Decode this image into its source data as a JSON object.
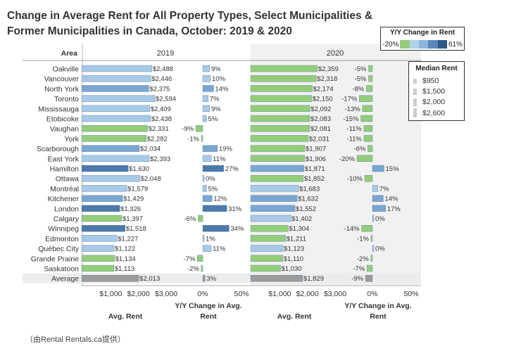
{
  "title_line1": "Change in Average Rent for All Property Types, Select Municipalities &",
  "title_line2": "Former Municipalities in Canada, October: 2019 & 2020",
  "caption": "（由Rental Rentals.ca提供）",
  "legend_color": {
    "title": "Y/Y Change in Rent",
    "min_label": "-20%",
    "max_label": "61%",
    "ramp": [
      "#93cd7a",
      "#b0d1ea",
      "#8fb6da",
      "#5a87b8",
      "#2f5888"
    ]
  },
  "legend_size": {
    "title": "Median Rent",
    "items": [
      "$950",
      "$1,500",
      "$2,000",
      "$2,600"
    ]
  },
  "colors": {
    "green": "#93cd7a",
    "light_blue": "#a8c9e8",
    "mid_blue": "#7aa6d2",
    "dark_blue": "#4d79aa",
    "gray": "#9b9b9b",
    "band": "#f1f1f1"
  },
  "chart_data": {
    "type": "bar",
    "header_area": "Area",
    "year_2019": "2019",
    "year_2020": "2020",
    "areas": [
      "Oakville",
      "Vancouver",
      "North York",
      "Toronto",
      "Mississauga",
      "Etobicoke",
      "Vaughan",
      "York",
      "Scarborough",
      "East York",
      "Hamilton",
      "Ottawa",
      "Montréal",
      "Kitchener",
      "London",
      "Calgary",
      "Winnipeg",
      "Edmonton",
      "Québec City",
      "Grande Prairie",
      "Saskatoon",
      "Average"
    ],
    "rent_2019": [
      2488,
      2446,
      2375,
      2594,
      2409,
      2438,
      2331,
      2282,
      2034,
      2393,
      1630,
      2048,
      1579,
      1429,
      1326,
      1397,
      1518,
      1227,
      1122,
      1134,
      1113,
      2013
    ],
    "rent_2019_labels": [
      "$2,488",
      "$2,446",
      "$2,375",
      "$2,594",
      "$2,409",
      "$2,438",
      "$2,331",
      "$2,282",
      "$2,034",
      "$2,393",
      "$1,630",
      "$2,048",
      "$1,579",
      "$1,429",
      "$1,326",
      "$1,397",
      "$1,518",
      "$1,227",
      "$1,122",
      "$1,134",
      "$1,113",
      "$2,013"
    ],
    "yoy_2019": [
      9,
      10,
      14,
      7,
      9,
      5,
      -9,
      -1,
      19,
      11,
      27,
      0,
      5,
      12,
      31,
      -6,
      34,
      1,
      11,
      -7,
      -2,
      3
    ],
    "yoy_2019_labels": [
      "9%",
      "10%",
      "14%",
      "7%",
      "9%",
      "5%",
      "-9%",
      "-1%",
      "19%",
      "11%",
      "27%",
      "0%",
      "5%",
      "12%",
      "31%",
      "-6%",
      "34%",
      "1%",
      "11%",
      "-7%",
      "-2%",
      "3%"
    ],
    "rent_2020": [
      2359,
      2318,
      2174,
      2150,
      2092,
      2083,
      2081,
      2031,
      1907,
      1906,
      1871,
      1852,
      1683,
      1632,
      1552,
      1402,
      1304,
      1211,
      1123,
      1110,
      1030,
      1829
    ],
    "rent_2020_labels": [
      "$2,359",
      "$2,318",
      "$2,174",
      "$2,150",
      "$2,092",
      "$2,083",
      "$2,081",
      "$2,031",
      "$1,907",
      "$1,906",
      "$1,871",
      "$1,852",
      "$1,683",
      "$1,632",
      "$1,552",
      "$1,402",
      "$1,304",
      "$1,211",
      "$1,123",
      "$1,110",
      "$1,030",
      "$1,829"
    ],
    "yoy_2020": [
      -5,
      -5,
      -8,
      -17,
      -13,
      -15,
      -11,
      -11,
      -6,
      -20,
      15,
      -10,
      7,
      14,
      17,
      0,
      -14,
      -1,
      0,
      -2,
      -7,
      -9
    ],
    "yoy_2020_labels": [
      "-5%",
      "-5%",
      "-8%",
      "-17%",
      "-13%",
      "-15%",
      "-11%",
      "-11%",
      "-6%",
      "-20%",
      "15%",
      "-10%",
      "7%",
      "14%",
      "17%",
      "0%",
      "-14%",
      "-1%",
      "0%",
      "-2%",
      "-7%",
      "-9%"
    ],
    "rent_ticks": [
      "$1,000",
      "$2,000",
      "$3,000"
    ],
    "rent_tick_values": [
      1000,
      2000,
      3000
    ],
    "rent_xlim": [
      0,
      3000
    ],
    "yoy_ticks": [
      "0%",
      "50%"
    ],
    "yoy_tick_values": [
      0,
      50
    ],
    "xlabel_rent": "Avg. Rent",
    "xlabel_yoy_line1": "Y/Y Change in Avg.",
    "xlabel_yoy_line2": "Rent",
    "grid": false
  }
}
